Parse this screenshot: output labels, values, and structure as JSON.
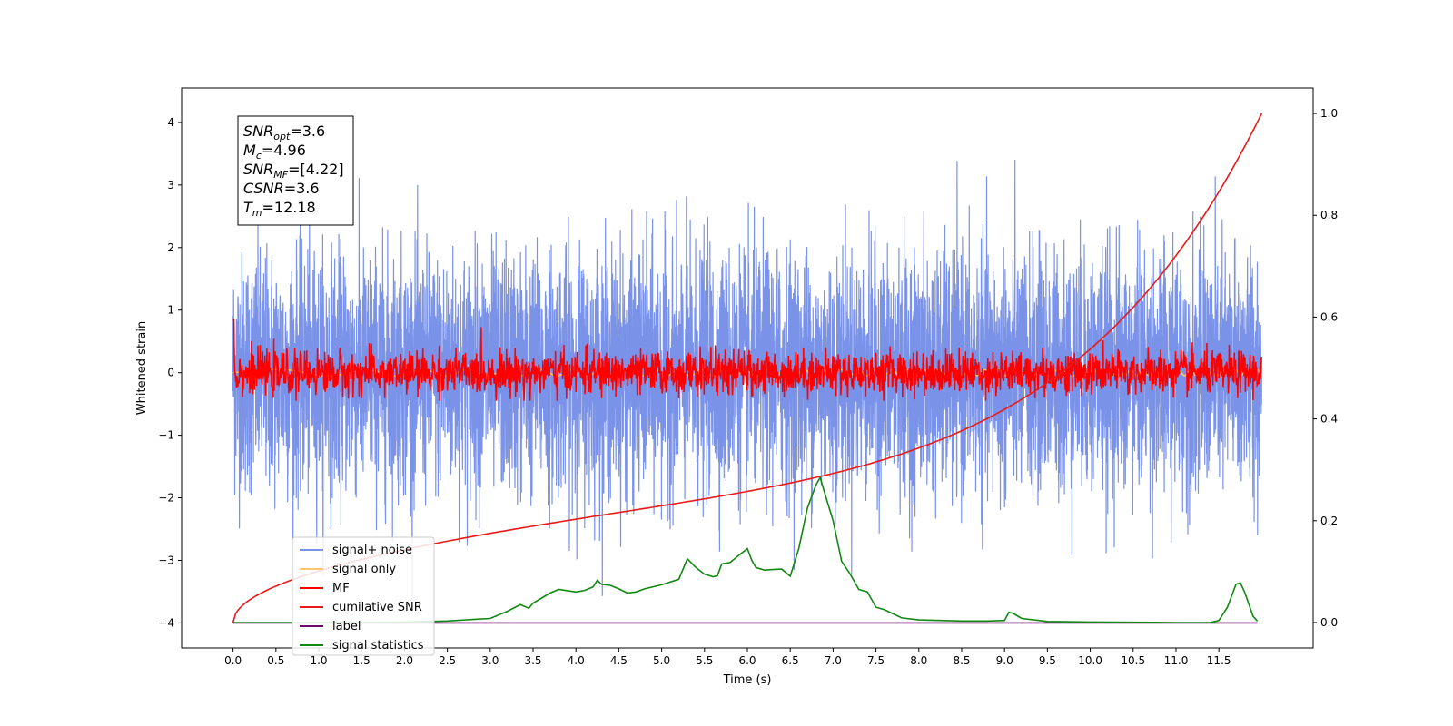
{
  "chart_data": {
    "type": "line",
    "title": "",
    "xlabel": "Time (s)",
    "ylabel": "Whitened strain",
    "xlim": [
      -0.6,
      12.6
    ],
    "ylim": [
      -4.4,
      4.55
    ],
    "y2lim": [
      -0.05,
      1.05
    ],
    "x_ticks": [
      "0.0",
      "0.5",
      "1.0",
      "1.5",
      "2.0",
      "2.5",
      "3.0",
      "3.5",
      "4.0",
      "4.5",
      "5.0",
      "5.5",
      "6.0",
      "6.5",
      "7.0",
      "7.5",
      "8.0",
      "8.5",
      "9.0",
      "9.5",
      "10.0",
      "10.5",
      "11.0",
      "11.5"
    ],
    "y_ticks": [
      "−4",
      "−3",
      "−2",
      "−1",
      "0",
      "1",
      "2",
      "3",
      "4"
    ],
    "y2_ticks": [
      "0.0",
      "0.2",
      "0.4",
      "0.6",
      "0.8",
      "1.0"
    ],
    "grid": false,
    "legend_position": "lower-left",
    "legend": [
      {
        "label": "signal+ noise",
        "color": "#7a93e8"
      },
      {
        "label": "signal only",
        "color": "#ffc66b"
      },
      {
        "label": "MF",
        "color": "#ff0000"
      },
      {
        "label": "cumilative SNR",
        "color": "#e81a1a"
      },
      {
        "label": "label",
        "color": "#6a0d6a"
      },
      {
        "label": "signal statistics",
        "color": "#118811"
      }
    ],
    "annotation": [
      {
        "sym": "SNR",
        "sub": "opt",
        "val": "=3.6"
      },
      {
        "sym": "M",
        "sub": "c",
        "val": "=4.96"
      },
      {
        "sym": "SNR",
        "sub": "MF",
        "val": "=[4.22]"
      },
      {
        "sym": "CSNR",
        "sub": "",
        "val": "=3.6"
      },
      {
        "sym": "T",
        "sub": "m",
        "val": "=12.18"
      }
    ],
    "series": [
      {
        "name": "signal statistics",
        "axis": "right",
        "x": [
          0.0,
          0.5,
          1.0,
          1.5,
          2.0,
          2.5,
          2.8,
          3.0,
          3.2,
          3.35,
          3.45,
          3.5,
          3.6,
          3.7,
          3.8,
          4.0,
          4.1,
          4.2,
          4.25,
          4.3,
          4.4,
          4.5,
          4.6,
          4.7,
          4.8,
          5.0,
          5.2,
          5.3,
          5.4,
          5.5,
          5.6,
          5.65,
          5.7,
          5.8,
          5.9,
          6.0,
          6.05,
          6.1,
          6.2,
          6.3,
          6.4,
          6.5,
          6.6,
          6.7,
          6.8,
          6.85,
          6.9,
          7.0,
          7.1,
          7.2,
          7.3,
          7.4,
          7.5,
          7.6,
          7.8,
          8.0,
          8.5,
          8.8,
          9.0,
          9.05,
          9.1,
          9.2,
          9.5,
          10.0,
          11.0,
          11.4,
          11.5,
          11.6,
          11.7,
          11.75,
          11.8,
          11.9,
          11.95
        ],
        "values": [
          0.0,
          0.0,
          0.0,
          0.0,
          0.001,
          0.003,
          0.006,
          0.008,
          0.022,
          0.035,
          0.028,
          0.038,
          0.048,
          0.058,
          0.065,
          0.06,
          0.063,
          0.07,
          0.083,
          0.075,
          0.073,
          0.066,
          0.058,
          0.06,
          0.066,
          0.074,
          0.085,
          0.125,
          0.108,
          0.095,
          0.09,
          0.092,
          0.115,
          0.118,
          0.132,
          0.145,
          0.123,
          0.108,
          0.103,
          0.104,
          0.105,
          0.091,
          0.145,
          0.225,
          0.27,
          0.285,
          0.255,
          0.2,
          0.12,
          0.095,
          0.065,
          0.06,
          0.03,
          0.025,
          0.009,
          0.005,
          0.003,
          0.003,
          0.004,
          0.02,
          0.018,
          0.008,
          0.002,
          0.001,
          0.0,
          0.0,
          0.004,
          0.03,
          0.075,
          0.078,
          0.06,
          0.012,
          0.003
        ]
      },
      {
        "name": "label",
        "axis": "left",
        "x": [
          0.0,
          11.95
        ],
        "values": [
          -4.0,
          -4.0
        ]
      }
    ]
  }
}
